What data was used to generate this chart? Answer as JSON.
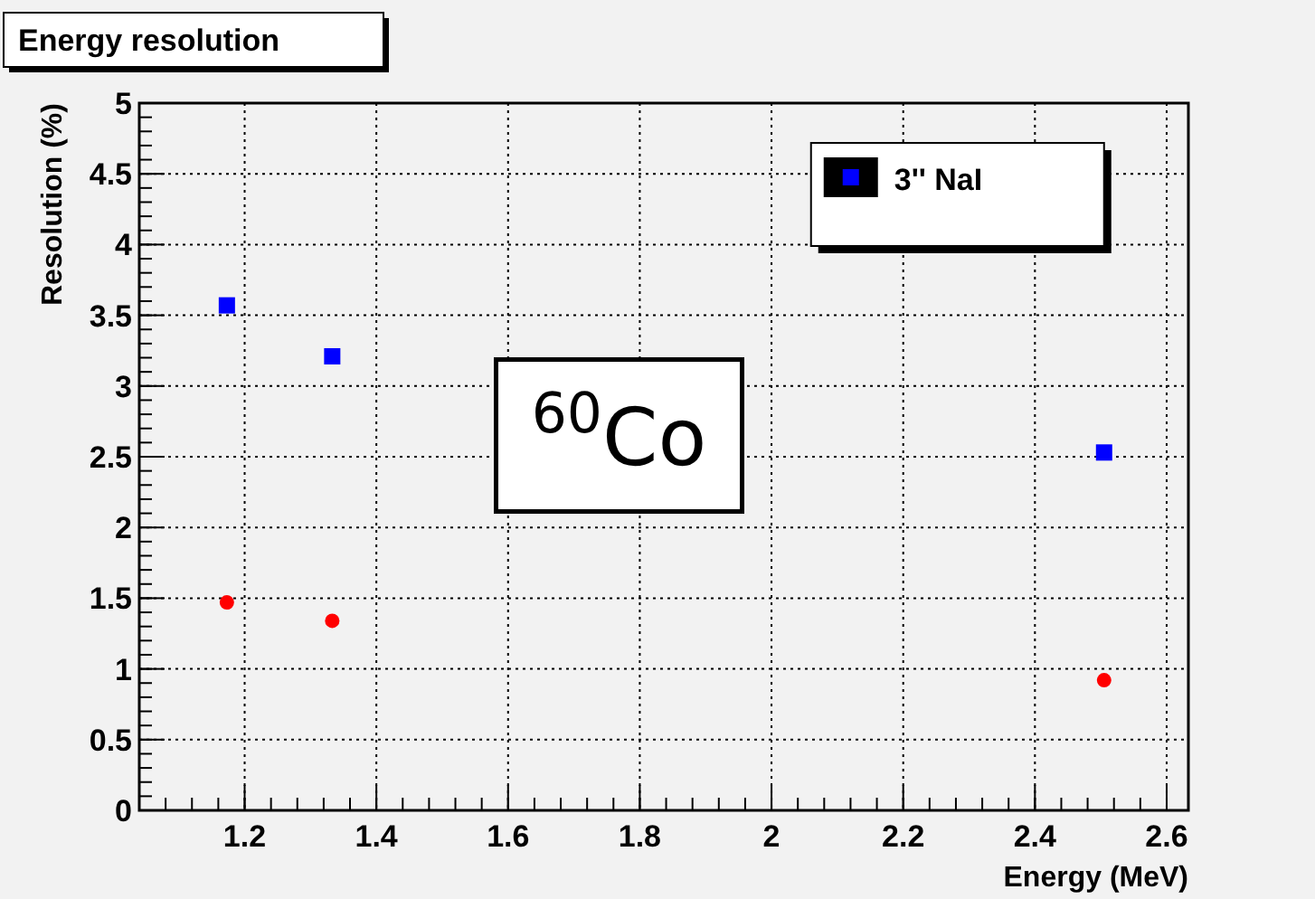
{
  "chart_data": {
    "type": "scatter",
    "title": "Energy resolution",
    "xlabel": "Energy (MeV)",
    "ylabel": "Resolution (%)",
    "annotations": [
      "$^{60}$Co"
    ],
    "series": [
      {
        "name": "3'' NaI",
        "color": "#0000ff",
        "marker": "square",
        "x": [
          1.173,
          1.333,
          2.505
        ],
        "values": [
          3.57,
          3.21,
          2.53
        ]
      },
      {
        "color": "#ff0000",
        "marker": "circle",
        "x": [
          1.173,
          1.333,
          2.505
        ],
        "values": [
          1.47,
          1.34,
          0.92
        ]
      }
    ],
    "xlim": [
      1.04,
      2.633
    ],
    "xticks": [
      1.2,
      1.4,
      1.6,
      1.8,
      2,
      2.2,
      2.4,
      2.6
    ],
    "ylim": [
      0,
      5
    ],
    "yticks": [
      0,
      0.5,
      1,
      1.5,
      2,
      2.5,
      3,
      3.5,
      4,
      4.5,
      5
    ],
    "grid": true,
    "legend": "top right"
  }
}
